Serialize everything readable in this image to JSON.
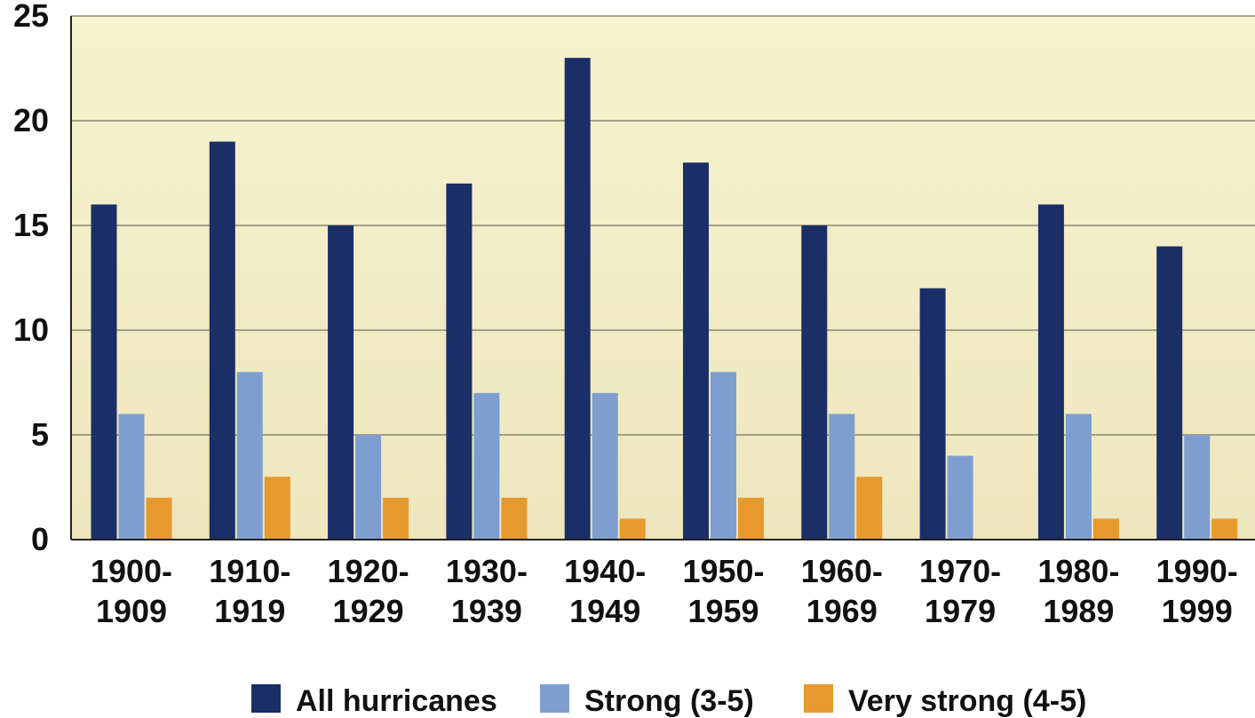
{
  "chart_data": {
    "type": "bar",
    "categories": [
      [
        "1900-",
        "1909"
      ],
      [
        "1910-",
        "1919"
      ],
      [
        "1920-",
        "1929"
      ],
      [
        "1930-",
        "1939"
      ],
      [
        "1940-",
        "1949"
      ],
      [
        "1950-",
        "1959"
      ],
      [
        "1960-",
        "1969"
      ],
      [
        "1970-",
        "1979"
      ],
      [
        "1980-",
        "1989"
      ],
      [
        "1990-",
        "1999"
      ]
    ],
    "series": [
      {
        "name": "All hurricanes",
        "color": "#1a2f66",
        "values": [
          16,
          19,
          15,
          17,
          23,
          18,
          15,
          12,
          16,
          14
        ]
      },
      {
        "name": "Strong (3-5)",
        "color": "#7e9ed0",
        "values": [
          6,
          8,
          5,
          7,
          7,
          8,
          6,
          4,
          6,
          5
        ]
      },
      {
        "name": "Very strong (4-5)",
        "color": "#e69a2e",
        "values": [
          2,
          3,
          2,
          2,
          1,
          2,
          3,
          0,
          1,
          1
        ]
      }
    ],
    "ylim": [
      0,
      25
    ],
    "yticks": [
      0,
      5,
      10,
      15,
      20,
      25
    ],
    "grid": true,
    "legend_position": "bottom",
    "plot_background": "#f4efc6"
  }
}
